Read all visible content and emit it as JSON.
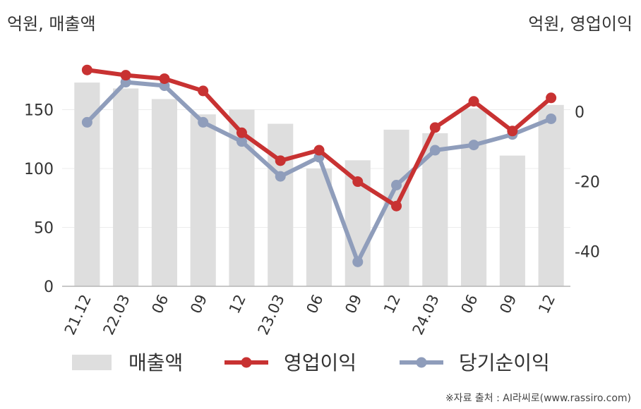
{
  "chart_data": {
    "type": "bar+line",
    "left_unit": "억원, 매출액",
    "right_unit": "억원, 영업이익",
    "categories": [
      "21.12",
      "22.03",
      "06",
      "09",
      "12",
      "23.03",
      "06",
      "09",
      "12",
      "24.03",
      "06",
      "09",
      "12"
    ],
    "bar_series": {
      "name": "매출액",
      "axis": "left",
      "color": "#dedede",
      "values": [
        173,
        168,
        159,
        146,
        150,
        138,
        100,
        107,
        133,
        130,
        151,
        111,
        154
      ]
    },
    "line_series": [
      {
        "name": "영업이익",
        "axis": "right",
        "color": "#c83232",
        "values": [
          12,
          10.5,
          9.5,
          6,
          -6,
          -14,
          -11,
          -20,
          -27,
          -4.5,
          3,
          -5.5,
          4
        ]
      },
      {
        "name": "당기순이익",
        "axis": "right",
        "color": "#8f9dbb",
        "values": [
          -3,
          8.5,
          7.5,
          -3,
          -8.5,
          -18.5,
          -13,
          -43,
          -21,
          -11,
          -9.5,
          -6.5,
          -2
        ]
      }
    ],
    "left_axis": {
      "ticks": [
        0,
        50,
        100,
        150
      ],
      "range": [
        0,
        200
      ]
    },
    "right_axis": {
      "ticks": [
        0,
        -20,
        -40
      ],
      "range": [
        -50,
        17.5
      ]
    },
    "legend_position": "bottom",
    "grid": true
  },
  "source": "※자료 출처 : AI라씨로(www.rassiro.com)"
}
